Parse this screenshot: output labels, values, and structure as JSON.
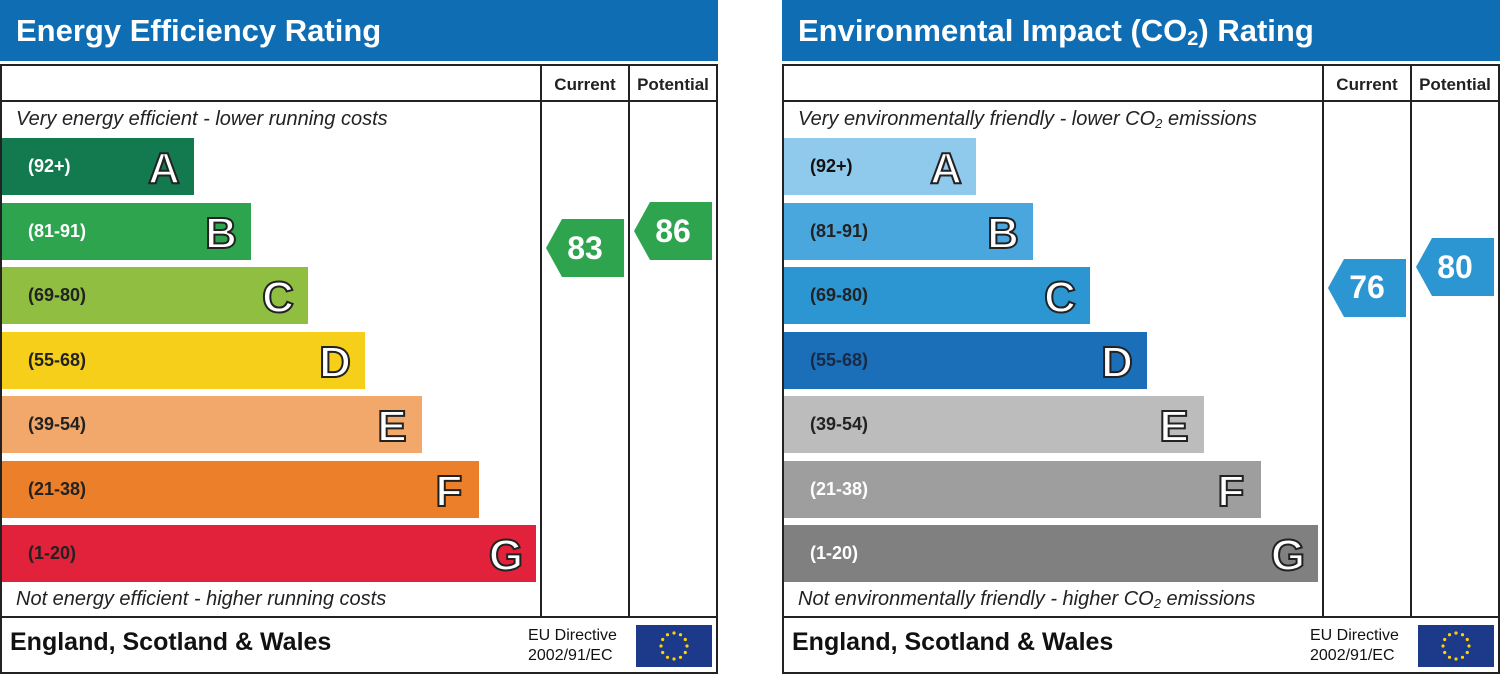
{
  "chart_data": [
    {
      "type": "bar",
      "title": "Energy Efficiency Rating",
      "columns": [
        "Current",
        "Potential"
      ],
      "top_caption": "Very energy efficient - lower running costs",
      "bottom_caption": "Not energy efficient - higher running costs",
      "bands": [
        {
          "range": "(92+)",
          "letter": "A",
          "color": "#137a4f",
          "text_color": "#ffffff"
        },
        {
          "range": "(81-91)",
          "letter": "B",
          "color": "#2ea44f",
          "text_color": "#ffffff"
        },
        {
          "range": "(69-80)",
          "letter": "C",
          "color": "#8fbe40",
          "text_color": "#222222"
        },
        {
          "range": "(55-68)",
          "letter": "D",
          "color": "#f6cf1a",
          "text_color": "#222222"
        },
        {
          "range": "(39-54)",
          "letter": "E",
          "color": "#f1a86a",
          "text_color": "#222222"
        },
        {
          "range": "(21-38)",
          "letter": "F",
          "color": "#ec7f2a",
          "text_color": "#222222"
        },
        {
          "range": "(1-20)",
          "letter": "G",
          "color": "#e1223a",
          "text_color": "#222222"
        }
      ],
      "current": {
        "value": 83,
        "label": "83",
        "color": "#2ea44f"
      },
      "potential": {
        "value": 86,
        "label": "86",
        "color": "#2ea44f"
      },
      "footer": {
        "country": "England, Scotland & Wales",
        "directive_line1": "EU Directive",
        "directive_line2": "2002/91/EC"
      }
    },
    {
      "type": "bar",
      "title": "Environmental Impact (CO2) Rating",
      "title_pre": "Environmental Impact (CO",
      "title_sub": "2",
      "title_post": ") Rating",
      "columns": [
        "Current",
        "Potential"
      ],
      "top_caption": "Very environmentally friendly - lower CO2 emissions",
      "top_caption_pre": "Very environmentally friendly - lower CO",
      "top_caption_sub": "2",
      "top_caption_post": " emissions",
      "bottom_caption": "Not environmentally friendly - higher CO2 emissions",
      "bottom_caption_pre": "Not environmentally friendly - higher CO",
      "bottom_caption_sub": "2",
      "bottom_caption_post": " emissions",
      "bands": [
        {
          "range": "(92+)",
          "letter": "A",
          "color": "#8fc9ec",
          "text_color": "#111111"
        },
        {
          "range": "(81-91)",
          "letter": "B",
          "color": "#4aa7de",
          "text_color": "#222222"
        },
        {
          "range": "(69-80)",
          "letter": "C",
          "color": "#2c96d2",
          "text_color": "#222222"
        },
        {
          "range": "(55-68)",
          "letter": "D",
          "color": "#1a6fb8",
          "text_color": "#1a2a44"
        },
        {
          "range": "(39-54)",
          "letter": "E",
          "color": "#bcbcbc",
          "text_color": "#222222"
        },
        {
          "range": "(21-38)",
          "letter": "F",
          "color": "#9e9e9e",
          "text_color": "#ffffff"
        },
        {
          "range": "(1-20)",
          "letter": "G",
          "color": "#808080",
          "text_color": "#ffffff"
        }
      ],
      "current": {
        "value": 76,
        "label": "76",
        "color": "#2c96d2"
      },
      "potential": {
        "value": 80,
        "label": "80",
        "color": "#2c96d2"
      },
      "footer": {
        "country": "England, Scotland & Wales",
        "directive_line1": "EU Directive",
        "directive_line2": "2002/91/EC"
      }
    }
  ]
}
